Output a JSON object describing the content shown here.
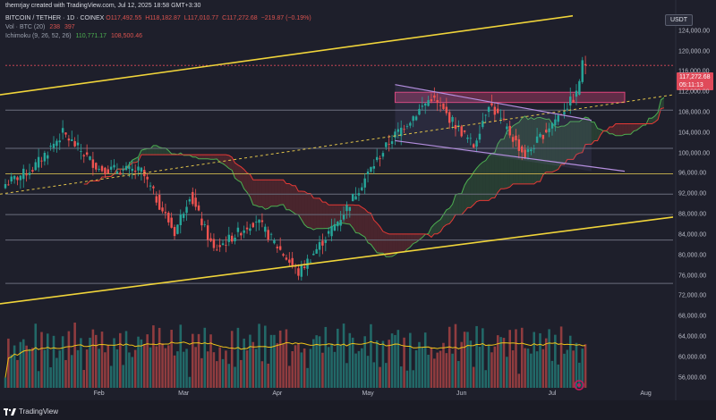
{
  "header": {
    "credit": "themrjay created with TradingView.com, Jul 12, 2025 18:58 GMT+3:30",
    "symbol": "BITCOIN / TETHER · 1D · COINEX",
    "open": "O117,492.55",
    "high": "H118,182.87",
    "low": "L117,010.77",
    "close": "C117,272.68",
    "change": "−219.87 (−0.19%)",
    "vol_label": "Vol · BTC (20)",
    "vol_a": "238",
    "vol_b": "397",
    "ichimoku_label": "Ichimoku (9, 26, 52, 26)",
    "ichimoku_a": "110,771.17",
    "ichimoku_b": "108,500.46"
  },
  "currency_button": "USDT",
  "price_tag": {
    "price": "117,272.68",
    "countdown": "05:11:13",
    "color": "#e04a5a"
  },
  "footer": {
    "brand": "TradingView"
  },
  "icons": {
    "logo": "tradingview-logo-icon",
    "settings": "gear-icon"
  },
  "colors": {
    "up": "#26a69a",
    "down": "#ef5350",
    "channel": "#f0d43a",
    "wedge": "#b48ede",
    "resistance_zone": "#e0457b",
    "tenkan": "#4caf50",
    "kijun": "#e53935",
    "volume_ma": "#f0c419"
  },
  "chart_data": {
    "type": "candlestick",
    "title": "BITCOIN / TETHER · 1D · COINEX",
    "y_axis": {
      "range": [
        54000,
        128000
      ],
      "ticks": [
        "56,000.00",
        "60,000.00",
        "64,000.00",
        "68,000.00",
        "72,000.00",
        "76,000.00",
        "80,000.00",
        "84,000.00",
        "88,000.00",
        "92,000.00",
        "96,000.00",
        "100,000.00",
        "104,000.00",
        "108,000.00",
        "112,000.00",
        "116,000.00",
        "120,000.00",
        "124,000.00"
      ]
    },
    "x_axis": {
      "ticks": [
        "Feb",
        "Mar",
        "Apr",
        "May",
        "Jun",
        "Jul",
        "Aug"
      ]
    },
    "last_price": 117272.68,
    "horizontal_levels": [
      108500,
      101000,
      96000,
      92000,
      88000,
      83000,
      74500
    ],
    "resistance_zone": [
      110000,
      112000
    ],
    "series_close_keypoints": [
      {
        "date": "2025-01-01",
        "close": 94000
      },
      {
        "date": "2025-01-10",
        "close": 97000
      },
      {
        "date": "2025-01-20",
        "close": 104000
      },
      {
        "date": "2025-02-01",
        "close": 97000
      },
      {
        "date": "2025-02-15",
        "close": 96500
      },
      {
        "date": "2025-02-26",
        "close": 84500
      },
      {
        "date": "2025-03-03",
        "close": 92000
      },
      {
        "date": "2025-03-11",
        "close": 81000
      },
      {
        "date": "2025-03-25",
        "close": 87000
      },
      {
        "date": "2025-04-08",
        "close": 76500
      },
      {
        "date": "2025-04-22",
        "close": 87500
      },
      {
        "date": "2025-05-02",
        "close": 97000
      },
      {
        "date": "2025-05-09",
        "close": 103000
      },
      {
        "date": "2025-05-22",
        "close": 111000
      },
      {
        "date": "2025-06-05",
        "close": 101500
      },
      {
        "date": "2025-06-10",
        "close": 110000
      },
      {
        "date": "2025-06-22",
        "close": 99500
      },
      {
        "date": "2025-07-01",
        "close": 106000
      },
      {
        "date": "2025-07-09",
        "close": 111500
      },
      {
        "date": "2025-07-11",
        "close": 117500
      },
      {
        "date": "2025-07-12",
        "close": 117272.68
      }
    ]
  }
}
